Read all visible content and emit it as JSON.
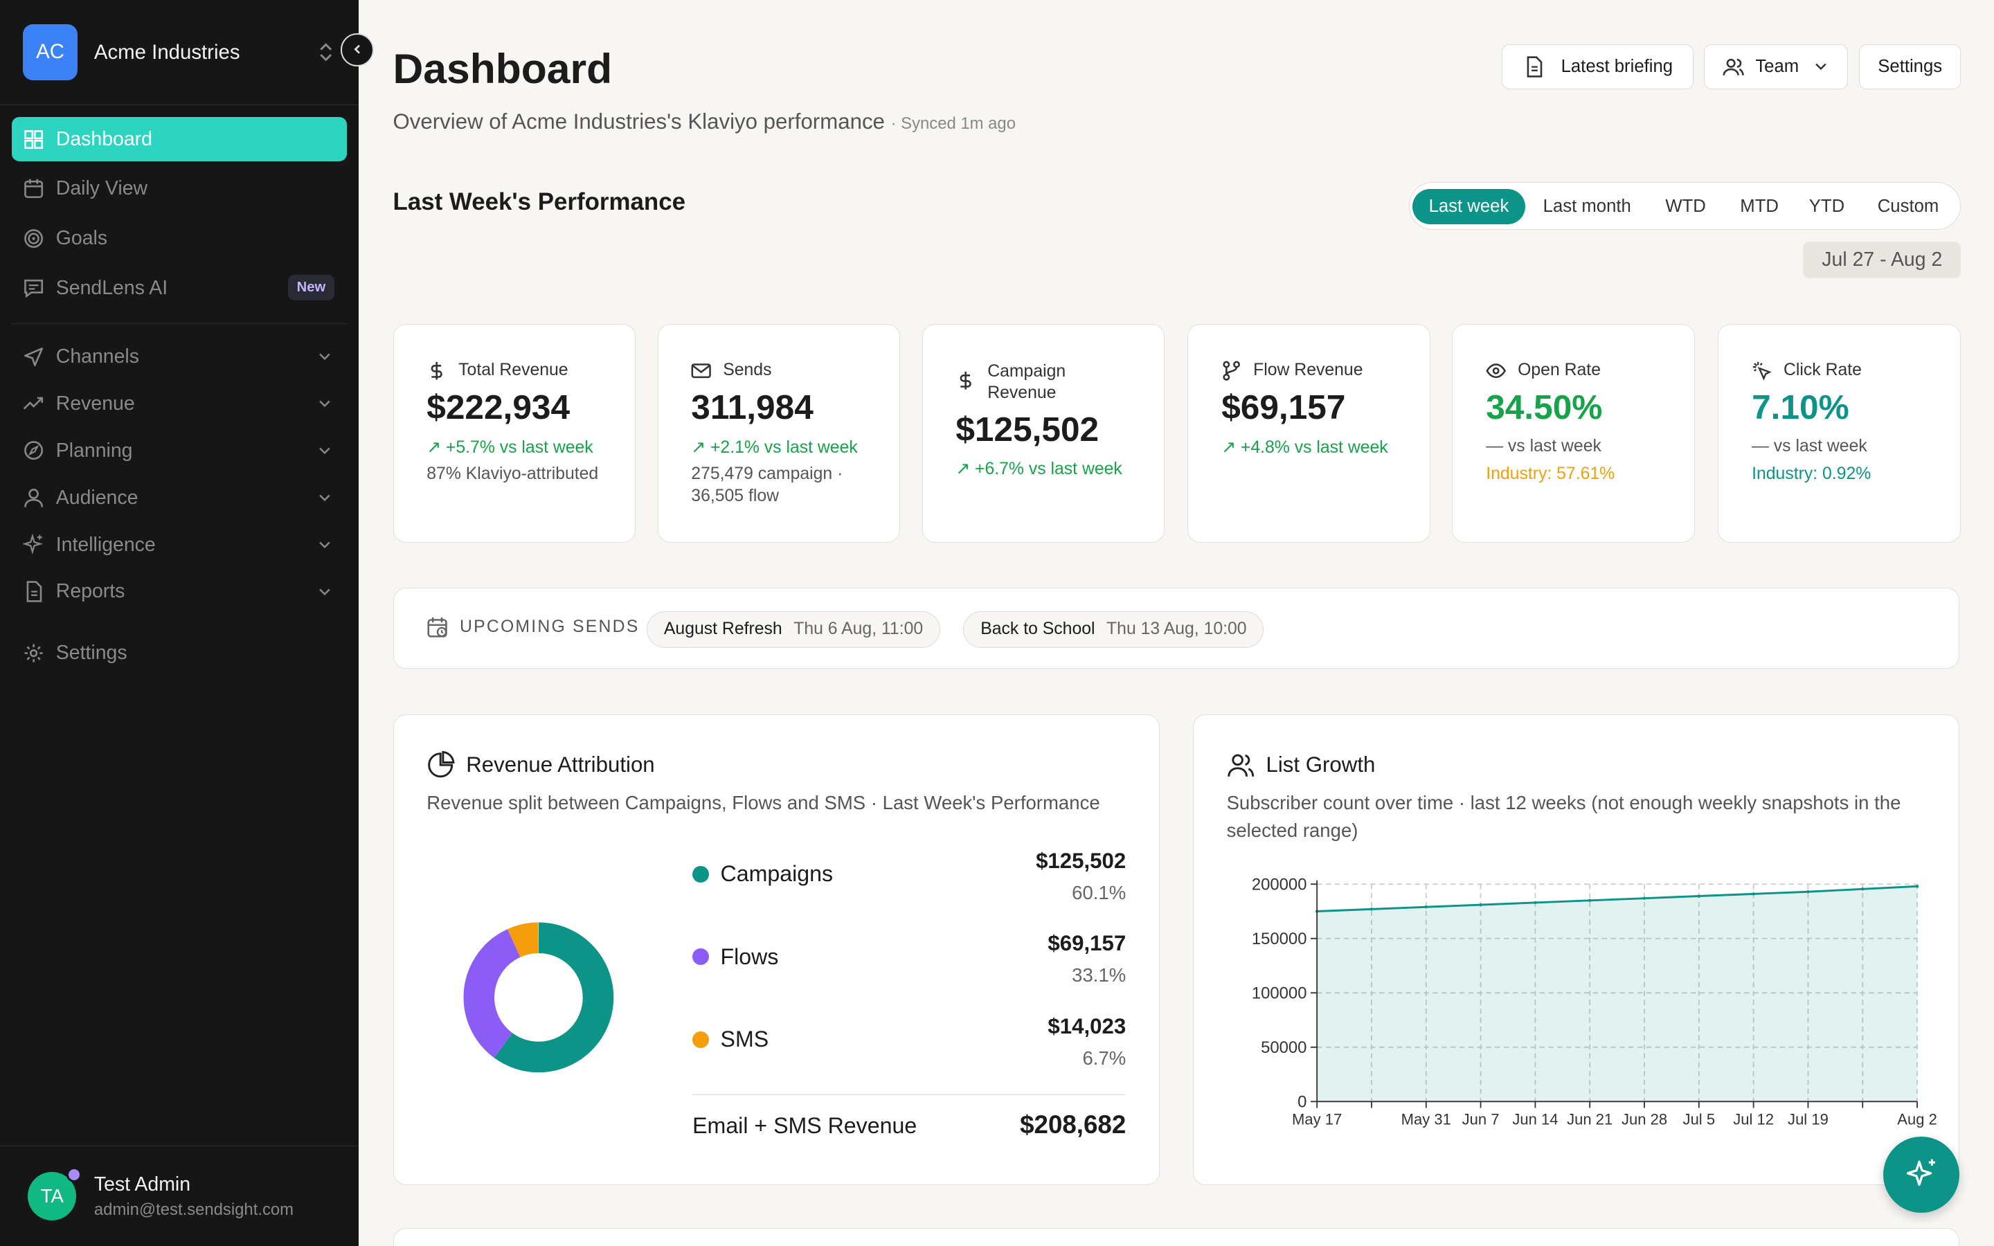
{
  "sidebar": {
    "workspace": {
      "initials": "AC",
      "name": "Acme Industries"
    },
    "items": [
      {
        "label": "Dashboard",
        "icon": "grid-icon",
        "active": true
      },
      {
        "label": "Daily View",
        "icon": "calendar-icon"
      },
      {
        "label": "Goals",
        "icon": "target-icon"
      },
      {
        "label": "SendLens AI",
        "icon": "chat-icon",
        "badge": "New"
      },
      {
        "label": "Channels",
        "icon": "send-icon"
      },
      {
        "label": "Revenue",
        "icon": "trend-icon"
      },
      {
        "label": "Planning",
        "icon": "compass-icon"
      },
      {
        "label": "Audience",
        "icon": "user-icon"
      },
      {
        "label": "Intelligence",
        "icon": "sparkle-icon"
      },
      {
        "label": "Reports",
        "icon": "document-icon"
      },
      {
        "label": "Settings",
        "icon": "gear-icon"
      }
    ],
    "user": {
      "initials": "TA",
      "name": "Test Admin",
      "email": "admin@test.sendsight.com"
    }
  },
  "header": {
    "title": "Dashboard",
    "subtitle": "Overview of Acme Industries's Klaviyo performance",
    "synced": "· Synced 1m ago",
    "buttons": {
      "briefing": "Latest briefing",
      "team": "Team",
      "settings": "Settings"
    }
  },
  "performance": {
    "title": "Last Week's Performance",
    "ranges": [
      "Last week",
      "Last month",
      "WTD",
      "MTD",
      "YTD",
      "Custom"
    ],
    "selected_range": "Last week",
    "date_range": "Jul 27 - Aug 2"
  },
  "kpis": [
    {
      "label": "Total Revenue",
      "icon": "dollar-icon",
      "value": "$222,934",
      "delta": "+5.7% vs last week",
      "note": "87% Klaviyo-attributed"
    },
    {
      "label": "Sends",
      "icon": "mail-icon",
      "value": "311,984",
      "delta": "+2.1% vs last week",
      "note": "275,479 campaign ·",
      "note2": "36,505 flow"
    },
    {
      "label": "Campaign",
      "label2": "Revenue",
      "icon": "dollar-icon",
      "value": "$125,502",
      "delta": "+6.7% vs last week"
    },
    {
      "label": "Flow Revenue",
      "icon": "flow-icon",
      "value": "$69,157",
      "delta": "+4.8% vs last week"
    },
    {
      "label": "Open Rate",
      "icon": "eye-icon",
      "value": "34.50%",
      "delta": "— vs last week",
      "industry": "Industry: 57.61%"
    },
    {
      "label": "Click Rate",
      "icon": "cursor-click-icon",
      "value": "7.10%",
      "delta": "— vs last week",
      "industry": "Industry: 0.92%"
    }
  ],
  "upcoming": {
    "label": "UPCOMING SENDS",
    "items": [
      {
        "name": "August Refresh",
        "date": "Thu 6 Aug, 11:00"
      },
      {
        "name": "Back to School",
        "date": "Thu 13 Aug, 10:00"
      }
    ]
  },
  "attribution": {
    "title": "Revenue Attribution",
    "description": "Revenue split between Campaigns, Flows and SMS · Last Week's Performance",
    "rows": [
      {
        "name": "Campaigns",
        "value": "$125,502",
        "pct": "60.1%",
        "color": "#0d9488"
      },
      {
        "name": "Flows",
        "value": "$69,157",
        "pct": "33.1%",
        "color": "#8b5cf6"
      },
      {
        "name": "SMS",
        "value": "$14,023",
        "pct": "6.7%",
        "color": "#f59e0b"
      }
    ],
    "total_label": "Email + SMS Revenue",
    "total_value": "$208,682"
  },
  "growth": {
    "title": "List Growth",
    "description": "Subscriber count over time · last 12 weeks (not enough weekly snapshots in the selected range)"
  },
  "chart_data": {
    "type": "area",
    "x": [
      "May 17",
      "May 24",
      "May 31",
      "Jun 7",
      "Jun 14",
      "Jun 21",
      "Jun 28",
      "Jul 5",
      "Jul 12",
      "Jul 19",
      "Jul 26",
      "Aug 2"
    ],
    "x_tick_labels": [
      "May 17",
      "May 31",
      "Jun 7",
      "Jun 14",
      "Jun 21",
      "Jun 28",
      "Jul 5",
      "Jul 12",
      "Jul 19",
      "Aug 2"
    ],
    "series": [
      {
        "values": [
          175000,
          177000,
          179000,
          181000,
          183000,
          185000,
          187000,
          189000,
          191000,
          193000,
          195500,
          198000
        ],
        "color": "#0d9488"
      }
    ],
    "y_ticks": [
      "0",
      "50000",
      "100000",
      "150000",
      "200000"
    ],
    "ylim": [
      0,
      200000
    ],
    "grid": true
  },
  "colors": {
    "accent": "#2dd4bf",
    "brand": "#0d9488",
    "positive": "#16a34a",
    "warning": "#f59e0b",
    "violet": "#8b5cf6"
  }
}
